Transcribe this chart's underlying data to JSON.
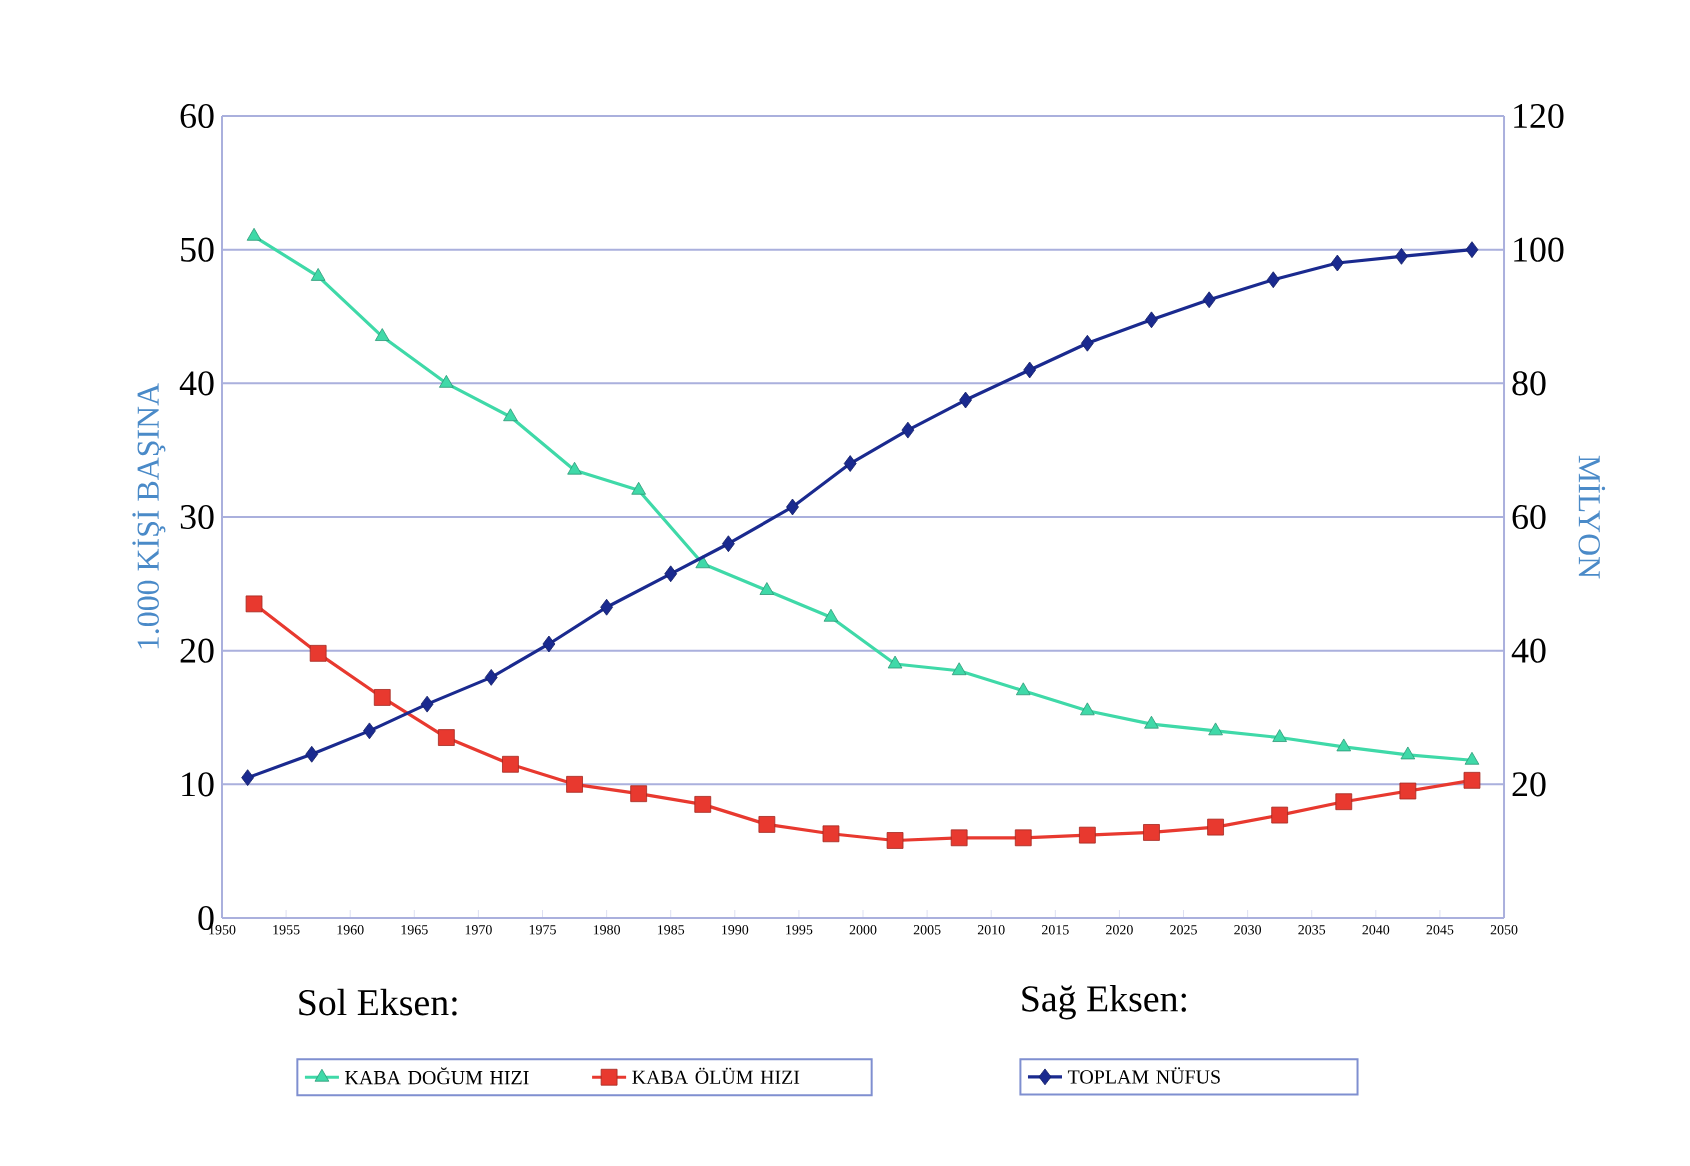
{
  "chart_data": {
    "type": "line",
    "x": [
      1952.5,
      1957.5,
      1962.5,
      1967.5,
      1972.5,
      1977.5,
      1982.5,
      1987.5,
      1992.5,
      1997.5,
      2002.5,
      2007.5,
      2012.5,
      2017.5,
      2022.5,
      2027.5,
      2032.5,
      2037.5,
      2042.5,
      2047.5
    ],
    "series": [
      {
        "name": "KABA DOĞUM HIZI",
        "color": "#3fd9a8",
        "marker": "triangle",
        "values": [
          51,
          48,
          43.5,
          40,
          37.5,
          33.5,
          32,
          26.5,
          24.5,
          22.5,
          19,
          18.5,
          17,
          15.5,
          14.5,
          14,
          13.5,
          12.8,
          12.2,
          11.8
        ]
      },
      {
        "name": "KABA ÖLÜM HIZI",
        "color": "#e8392f",
        "marker": "square",
        "values": [
          23.5,
          19.8,
          16.5,
          13.5,
          11.5,
          10,
          9.3,
          8.5,
          7,
          6.3,
          5.8,
          6,
          6,
          6.2,
          6.4,
          6.8,
          7.7,
          8.7,
          9.5,
          10.3
        ]
      },
      {
        "name": "TOPLAM NÜFUS",
        "color": "#1a2a8f",
        "marker": "diamond",
        "axis": "y2",
        "x": [
          1952,
          1957,
          1961.5,
          1966,
          1971,
          1975.5,
          1980,
          1985,
          1989.5,
          1994.5,
          1999,
          2003.5,
          2008,
          2013,
          2017.5,
          2022.5,
          2027,
          2032,
          2037,
          2042,
          2047.5
        ],
        "values": [
          21,
          24.5,
          28,
          32,
          36,
          41,
          46.5,
          51.5,
          56,
          61.5,
          68,
          73,
          77.5,
          82,
          86,
          89.5,
          92.5,
          95.5,
          98,
          99,
          100
        ]
      }
    ],
    "ylabel": "1.000 KİŞİ BAŞINA",
    "y2label": "MİLYON",
    "xlim": [
      1950,
      2050
    ],
    "xticks": [
      1950,
      1955,
      1960,
      1965,
      1970,
      1975,
      1980,
      1985,
      1990,
      1995,
      2000,
      2005,
      2010,
      2015,
      2020,
      2025,
      2030,
      2035,
      2040,
      2045,
      2050
    ],
    "ylim": [
      0,
      60
    ],
    "yticks": [
      0,
      10,
      20,
      30,
      40,
      50,
      60
    ],
    "y2lim": [
      0,
      120
    ],
    "y2ticks": [
      20,
      40,
      60,
      80,
      100,
      120
    ],
    "grid": "y",
    "legend": "bottom",
    "annotations": [
      "Sol Eksen:",
      "Sağ Eksen:"
    ]
  }
}
